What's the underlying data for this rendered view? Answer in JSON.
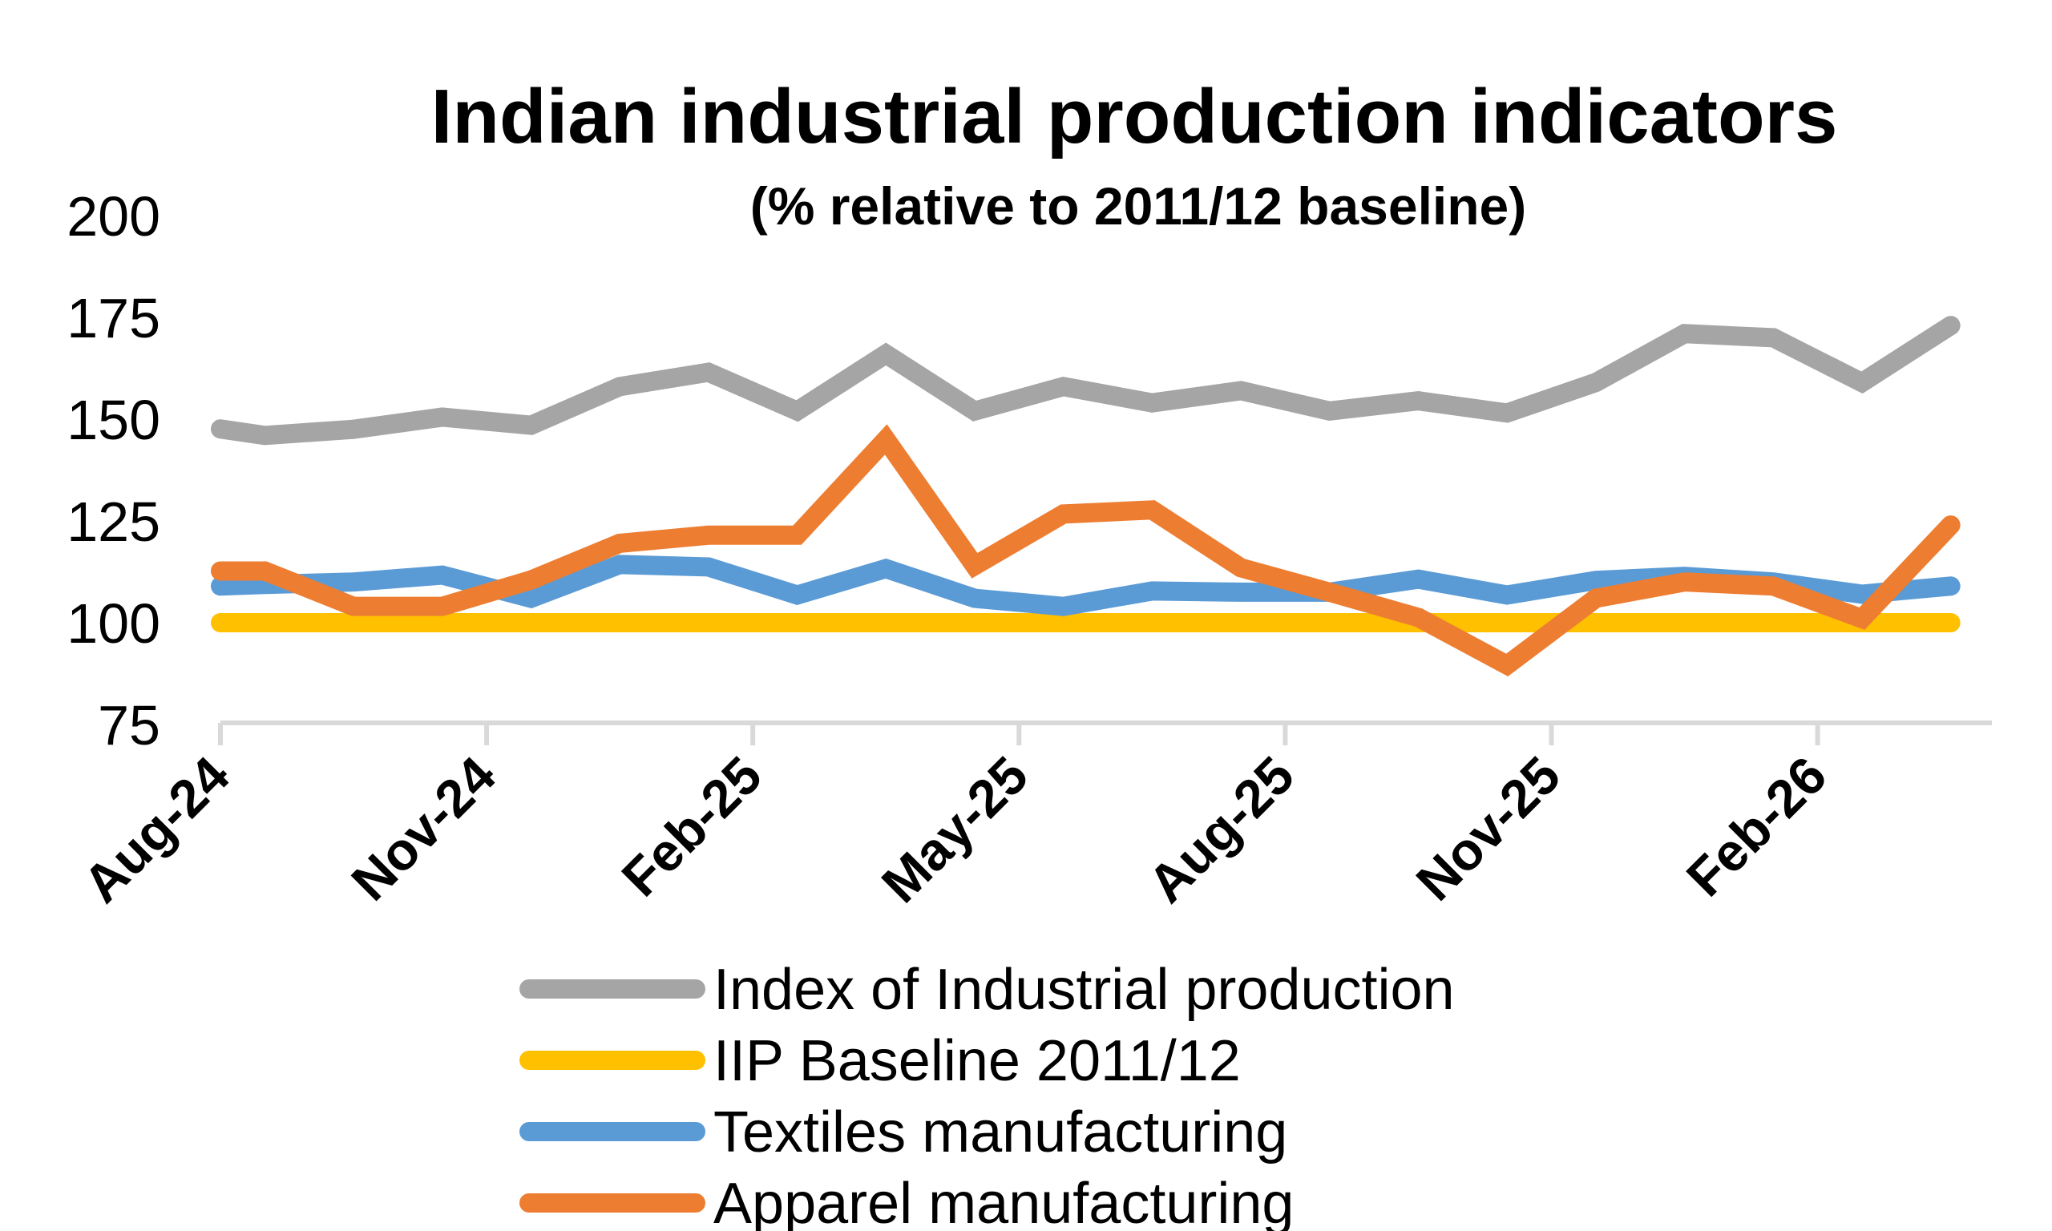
{
  "chart_data": {
    "type": "line",
    "title": "Indian industrial production indicators",
    "subtitle": "(% relative to 2011/12 baseline)",
    "xlabel": "",
    "ylabel": "",
    "ylim": [
      75,
      200
    ],
    "yticks": [
      "75",
      "100",
      "125",
      "150",
      "175",
      "200"
    ],
    "ytick_values": [
      75,
      100,
      125,
      150,
      175,
      200
    ],
    "xtick_labels": [
      "Aug-24",
      "Nov-24",
      "Feb-25",
      "May-25",
      "Aug-25",
      "Nov-25",
      "Feb-26"
    ],
    "xtick_month_offsets": [
      0,
      3,
      6,
      9,
      12,
      15,
      18
    ],
    "x_month_offsets": [
      0,
      0.5,
      1.5,
      2.5,
      3.5,
      4.5,
      5.5,
      6.5,
      7.5,
      8.5,
      9.5,
      10.5,
      11.5,
      12.5,
      13.5,
      14.5,
      15.5,
      16.5,
      17.5,
      18.5,
      19.5
    ],
    "grid": false,
    "legend_position": "bottom",
    "series": [
      {
        "name": "Index of Industrial production",
        "color": "#A5A5A5",
        "values": [
          147.6,
          146,
          147.5,
          150.5,
          148.5,
          158,
          161.5,
          152,
          166,
          152,
          158,
          154,
          157,
          152,
          154.5,
          151.5,
          159,
          171,
          170,
          159,
          173
        ]
      },
      {
        "name": "IIP Baseline 2011/12",
        "color": "#FFC000",
        "values": [
          100,
          100,
          100,
          100,
          100,
          100,
          100,
          100,
          100,
          100,
          100,
          100,
          100,
          100,
          100,
          100,
          100,
          100,
          100,
          100,
          100
        ]
      },
      {
        "name": "Textiles manufacturing",
        "color": "#5B9BD5",
        "values": [
          109,
          109.4,
          110,
          111.7,
          106,
          114.3,
          113.7,
          106.8,
          113.3,
          106,
          104,
          107.8,
          107.5,
          107.5,
          110.7,
          106.8,
          110.4,
          111.4,
          110,
          107,
          109
        ]
      },
      {
        "name": "Apparel manufacturing",
        "color": "#ED7D31",
        "values": [
          112.7,
          112.7,
          104,
          104,
          110.5,
          119.5,
          121.5,
          121.5,
          145,
          114,
          126.7,
          127.7,
          113.5,
          107.5,
          101.3,
          89.6,
          106,
          110,
          109,
          101,
          124
        ]
      }
    ]
  }
}
